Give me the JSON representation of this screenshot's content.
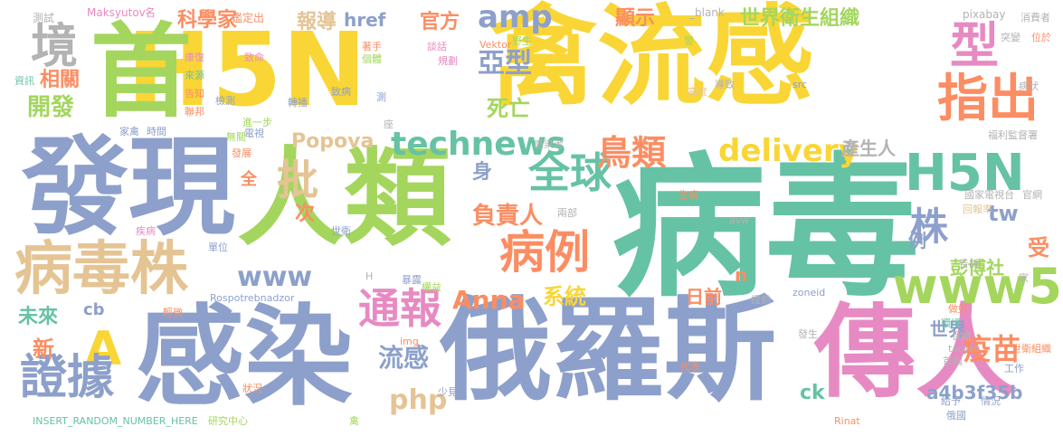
{
  "colors": {
    "yellow": "#f9d635",
    "green": "#a4d65e",
    "teal": "#66c2a5",
    "slate": "#8da0cb",
    "pink": "#e78ac3",
    "orange": "#fc8d62",
    "tan": "#e5c494",
    "grey": "#b3b3b3"
  },
  "words": [
    {
      "t": "H5N",
      "c": "yellow"
    },
    {
      "t": "禽流感",
      "c": "yellow"
    },
    {
      "t": "首",
      "c": "green"
    },
    {
      "t": "病毒",
      "c": "teal"
    },
    {
      "t": "發現",
      "c": "slate"
    },
    {
      "t": "人類",
      "c": "green"
    },
    {
      "t": "感染",
      "c": "slate"
    },
    {
      "t": "俄羅斯",
      "c": "slate"
    },
    {
      "t": "傳人",
      "c": "pink"
    },
    {
      "t": "病毒株",
      "c": "tan"
    },
    {
      "t": "指出",
      "c": "orange"
    },
    {
      "t": "型",
      "c": "pink"
    },
    {
      "t": "H5N",
      "c": "teal"
    },
    {
      "t": "全球",
      "c": "teal"
    },
    {
      "t": "病例",
      "c": "orange"
    },
    {
      "t": "境",
      "c": "grey"
    },
    {
      "t": "A",
      "c": "yellow"
    },
    {
      "t": "www5",
      "c": "green"
    },
    {
      "t": "株",
      "c": "slate"
    },
    {
      "t": "批",
      "c": "tan"
    },
    {
      "t": "technews",
      "c": "teal"
    },
    {
      "t": "amp",
      "c": "slate"
    },
    {
      "t": "delivery",
      "c": "yellow"
    },
    {
      "t": "通報",
      "c": "pink"
    },
    {
      "t": "證據",
      "c": "slate"
    },
    {
      "t": "www",
      "c": "slate"
    },
    {
      "t": "Anna",
      "c": "orange"
    },
    {
      "t": "鳥類",
      "c": "orange"
    },
    {
      "t": "亞型",
      "c": "slate"
    },
    {
      "t": "負責人",
      "c": "orange"
    },
    {
      "t": "Popova",
      "c": "tan"
    },
    {
      "t": "php",
      "c": "tan"
    },
    {
      "t": "疫苗",
      "c": "orange"
    },
    {
      "t": "流感",
      "c": "slate"
    },
    {
      "t": "系統",
      "c": "yellow"
    },
    {
      "t": "開發",
      "c": "green"
    },
    {
      "t": "相關",
      "c": "orange"
    },
    {
      "t": "死亡",
      "c": "green"
    },
    {
      "t": "報導",
      "c": "tan"
    },
    {
      "t": "科學家",
      "c": "orange"
    },
    {
      "t": "世界衛生組織",
      "c": "green"
    },
    {
      "t": "tw",
      "c": "slate"
    },
    {
      "t": "href",
      "c": "slate"
    },
    {
      "t": "官方",
      "c": "orange"
    },
    {
      "t": "顯示",
      "c": "orange"
    },
    {
      "t": "彭博社",
      "c": "green"
    },
    {
      "t": "a4b3f35b",
      "c": "slate"
    },
    {
      "t": "未來",
      "c": "teal"
    },
    {
      "t": "世界",
      "c": "slate"
    },
    {
      "t": "產生人",
      "c": "grey"
    },
    {
      "t": "日前",
      "c": "orange"
    },
    {
      "t": "受",
      "c": "orange"
    },
    {
      "t": "新",
      "c": "orange"
    },
    {
      "t": "次",
      "c": "orange"
    },
    {
      "t": "例",
      "c": "slate"
    },
    {
      "t": "身",
      "c": "slate"
    },
    {
      "t": "ck",
      "c": "teal"
    },
    {
      "t": "cb",
      "c": "slate"
    },
    {
      "t": "全",
      "c": "orange"
    },
    {
      "t": "n",
      "c": "orange"
    },
    {
      "t": "Maksyutov",
      "c": "pink"
    },
    {
      "t": "名",
      "c": "pink"
    },
    {
      "t": "鑑定出",
      "c": "orange"
    },
    {
      "t": "_blank",
      "c": "grey"
    },
    {
      "t": "pixabay",
      "c": "grey"
    },
    {
      "t": "消費者",
      "c": "grey"
    },
    {
      "t": "測試",
      "c": "grey"
    },
    {
      "t": "致命",
      "c": "pink"
    },
    {
      "t": "來源",
      "c": "teal"
    },
    {
      "t": "康復",
      "c": "pink"
    },
    {
      "t": "告知",
      "c": "orange"
    },
    {
      "t": "聯邦",
      "c": "orange"
    },
    {
      "t": "資訊",
      "c": "teal"
    },
    {
      "t": "家禽",
      "c": "slate"
    },
    {
      "t": "時間",
      "c": "slate"
    },
    {
      "t": "發展",
      "c": "orange"
    },
    {
      "t": "著手",
      "c": "orange"
    },
    {
      "t": "個體",
      "c": "green"
    },
    {
      "t": "談話",
      "c": "pink"
    },
    {
      "t": "規劃",
      "c": "pink"
    },
    {
      "t": "Vektor",
      "c": "orange"
    },
    {
      "t": "野生",
      "c": "green"
    },
    {
      "t": "警",
      "c": "green"
    },
    {
      "t": "突變",
      "c": "grey"
    },
    {
      "t": "病狀",
      "c": "grey"
    },
    {
      "t": "高度",
      "c": "tan"
    },
    {
      "t": "導致",
      "c": "grey"
    },
    {
      "t": "src",
      "c": "slate"
    },
    {
      "t": "檢測",
      "c": "slate"
    },
    {
      "t": "轉播",
      "c": "slate"
    },
    {
      "t": "致病",
      "c": "slate"
    },
    {
      "t": "無關",
      "c": "green"
    },
    {
      "t": "進一步",
      "c": "green"
    },
    {
      "t": "電視",
      "c": "slate"
    },
    {
      "t": "感染者",
      "c": "grey"
    },
    {
      "t": "福利監督署",
      "c": "grey"
    },
    {
      "t": "國家電視台",
      "c": "grey"
    },
    {
      "t": "官網",
      "c": "grey"
    },
    {
      "t": "回報率",
      "c": "tan"
    },
    {
      "t": "生病",
      "c": "orange"
    },
    {
      "t": "兩部",
      "c": "grey"
    },
    {
      "t": "疾病",
      "c": "pink"
    },
    {
      "t": "世衛",
      "c": "slate"
    },
    {
      "t": "單位",
      "c": "slate"
    },
    {
      "t": "avw",
      "c": "grey"
    },
    {
      "t": "Rospotrebnadzor",
      "c": "slate"
    },
    {
      "t": "H",
      "c": "grey"
    },
    {
      "t": "暴露",
      "c": "slate"
    },
    {
      "t": "權益",
      "c": "green"
    },
    {
      "t": "告訴",
      "c": "grey"
    },
    {
      "t": "家",
      "c": "grey"
    },
    {
      "t": "zoneid",
      "c": "slate"
    },
    {
      "t": "輕微",
      "c": "orange"
    },
    {
      "t": "提前",
      "c": "grey"
    },
    {
      "t": "做好",
      "c": "orange"
    },
    {
      "t": "環境",
      "c": "teal"
    },
    {
      "t": "img",
      "c": "orange"
    },
    {
      "t": "發生",
      "c": "grey"
    },
    {
      "t": "保護",
      "c": "grey"
    },
    {
      "t": "target",
      "c": "grey"
    },
    {
      "t": "世衛組織",
      "c": "orange"
    },
    {
      "t": "代表",
      "c": "orange"
    },
    {
      "t": "首個",
      "c": "grey"
    },
    {
      "t": "工作",
      "c": "slate"
    },
    {
      "t": "狀況",
      "c": "orange"
    },
    {
      "t": "少見",
      "c": "slate"
    },
    {
      "t": "給予",
      "c": "slate"
    },
    {
      "t": "情況",
      "c": "slate"
    },
    {
      "t": "INSERT_RANDOM_NUMBER_HERE",
      "c": "teal"
    },
    {
      "t": "研究中心",
      "c": "green"
    },
    {
      "t": "禽",
      "c": "green"
    },
    {
      "t": "俄國",
      "c": "slate"
    },
    {
      "t": "Rinat",
      "c": "orange"
    },
    {
      "t": "位於",
      "c": "orange"
    },
    {
      "t": "座",
      "c": "grey"
    },
    {
      "t": "測",
      "c": "slate"
    }
  ]
}
